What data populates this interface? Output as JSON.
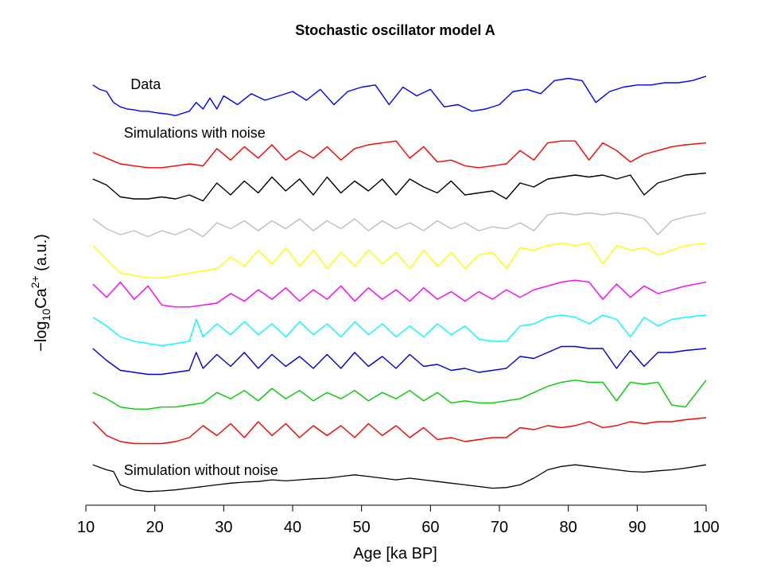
{
  "chart_data": {
    "type": "line",
    "title": "Stochastic oscillator model A",
    "xlabel": "Age [ka BP]",
    "ylabel": {
      "prefix": "−log",
      "sub": "10",
      "base": "Ca",
      "sup": "2+",
      "suffix": " (a.u.)"
    },
    "xlim": [
      10,
      100
    ],
    "xticks": [
      10,
      20,
      30,
      40,
      50,
      60,
      70,
      80,
      90,
      100
    ],
    "y_axis_ticks_shown": false,
    "grid": false,
    "annotations": [
      {
        "text": "Data",
        "x": 16.5,
        "row": 0
      },
      {
        "text": "Simulations with noise",
        "x": 15.5,
        "row": 1
      },
      {
        "text": "Simulation without noise",
        "x": 15.5,
        "row": 11
      }
    ],
    "series": [
      {
        "color": "#0000ff",
        "x": [
          11,
          12,
          13,
          14,
          15,
          16,
          17,
          18,
          19,
          20,
          21,
          22,
          23,
          24,
          25,
          26,
          27,
          28,
          29,
          30,
          32,
          34,
          36,
          38,
          40,
          42,
          44,
          46,
          48,
          50,
          52,
          54,
          56,
          58,
          60,
          62,
          64,
          66,
          68,
          70,
          72,
          74,
          76,
          78,
          80,
          82,
          84,
          86,
          88,
          90,
          92,
          94,
          96,
          98,
          100
        ],
        "y": [
          0.75,
          0.65,
          0.6,
          0.35,
          0.25,
          0.2,
          0.18,
          0.15,
          0.15,
          0.12,
          0.1,
          0.08,
          0.05,
          0.1,
          0.15,
          0.35,
          0.2,
          0.45,
          0.2,
          0.5,
          0.3,
          0.55,
          0.4,
          0.5,
          0.6,
          0.4,
          0.65,
          0.3,
          0.6,
          0.7,
          0.75,
          0.3,
          0.7,
          0.5,
          0.65,
          0.25,
          0.3,
          0.15,
          0.2,
          0.3,
          0.6,
          0.65,
          0.55,
          0.85,
          0.9,
          0.85,
          0.35,
          0.6,
          0.7,
          0.75,
          0.75,
          0.8,
          0.8,
          0.85,
          0.95
        ]
      },
      {
        "color": "#ff0000",
        "x": [
          11,
          13,
          15,
          17,
          19,
          21,
          23,
          25,
          27,
          29,
          31,
          33,
          35,
          37,
          39,
          41,
          43,
          45,
          47,
          49,
          51,
          53,
          55,
          57,
          59,
          61,
          63,
          65,
          67,
          69,
          71,
          73,
          75,
          77,
          79,
          81,
          83,
          85,
          87,
          89,
          91,
          93,
          95,
          97,
          100
        ],
        "y": [
          0.55,
          0.4,
          0.25,
          0.2,
          0.15,
          0.15,
          0.2,
          0.25,
          0.2,
          0.65,
          0.35,
          0.7,
          0.4,
          0.75,
          0.35,
          0.6,
          0.4,
          0.7,
          0.35,
          0.65,
          0.75,
          0.8,
          0.85,
          0.4,
          0.7,
          0.3,
          0.35,
          0.2,
          0.15,
          0.2,
          0.25,
          0.6,
          0.35,
          0.8,
          0.85,
          0.85,
          0.35,
          0.8,
          0.6,
          0.3,
          0.5,
          0.6,
          0.7,
          0.75,
          0.8
        ]
      },
      {
        "color": "#000000",
        "x": [
          11,
          13,
          15,
          17,
          19,
          21,
          23,
          25,
          27,
          29,
          31,
          33,
          35,
          37,
          39,
          41,
          43,
          45,
          47,
          49,
          51,
          53,
          55,
          57,
          59,
          61,
          63,
          65,
          67,
          69,
          71,
          73,
          75,
          77,
          79,
          81,
          83,
          85,
          87,
          89,
          91,
          93,
          95,
          97,
          100
        ],
        "y": [
          0.7,
          0.55,
          0.25,
          0.2,
          0.2,
          0.25,
          0.2,
          0.3,
          0.15,
          0.6,
          0.3,
          0.65,
          0.35,
          0.75,
          0.4,
          0.7,
          0.3,
          0.75,
          0.35,
          0.65,
          0.4,
          0.7,
          0.3,
          0.7,
          0.5,
          0.35,
          0.65,
          0.3,
          0.35,
          0.4,
          0.2,
          0.6,
          0.5,
          0.7,
          0.75,
          0.8,
          0.75,
          0.8,
          0.7,
          0.8,
          0.3,
          0.6,
          0.7,
          0.8,
          0.85
        ]
      },
      {
        "color": "#bebebe",
        "x": [
          11,
          13,
          15,
          17,
          19,
          21,
          23,
          25,
          27,
          29,
          31,
          33,
          35,
          37,
          39,
          41,
          43,
          45,
          47,
          49,
          51,
          53,
          55,
          57,
          59,
          61,
          63,
          65,
          67,
          69,
          71,
          73,
          75,
          77,
          79,
          81,
          83,
          85,
          87,
          89,
          91,
          93,
          95,
          97,
          100
        ],
        "y": [
          0.6,
          0.35,
          0.2,
          0.3,
          0.15,
          0.3,
          0.2,
          0.35,
          0.15,
          0.5,
          0.35,
          0.55,
          0.3,
          0.55,
          0.35,
          0.6,
          0.3,
          0.55,
          0.35,
          0.6,
          0.3,
          0.55,
          0.35,
          0.5,
          0.3,
          0.55,
          0.35,
          0.5,
          0.3,
          0.4,
          0.35,
          0.5,
          0.3,
          0.7,
          0.75,
          0.7,
          0.75,
          0.7,
          0.75,
          0.7,
          0.6,
          0.2,
          0.55,
          0.65,
          0.75
        ]
      },
      {
        "color": "#ffff00",
        "x": [
          11,
          13,
          15,
          17,
          19,
          21,
          23,
          25,
          27,
          29,
          31,
          33,
          35,
          37,
          39,
          41,
          43,
          45,
          47,
          49,
          51,
          53,
          55,
          57,
          59,
          61,
          63,
          65,
          67,
          69,
          71,
          73,
          75,
          77,
          79,
          81,
          83,
          85,
          87,
          89,
          91,
          93,
          95,
          97,
          100
        ],
        "y": [
          0.8,
          0.5,
          0.2,
          0.15,
          0.1,
          0.1,
          0.15,
          0.2,
          0.25,
          0.3,
          0.55,
          0.35,
          0.7,
          0.4,
          0.75,
          0.35,
          0.7,
          0.3,
          0.65,
          0.35,
          0.7,
          0.4,
          0.65,
          0.3,
          0.7,
          0.35,
          0.65,
          0.3,
          0.6,
          0.65,
          0.3,
          0.75,
          0.7,
          0.8,
          0.85,
          0.8,
          0.85,
          0.4,
          0.8,
          0.7,
          0.75,
          0.6,
          0.7,
          0.8,
          0.85
        ]
      },
      {
        "color": "#ff00ff",
        "x": [
          11,
          13,
          15,
          17,
          19,
          21,
          23,
          25,
          27,
          29,
          31,
          33,
          35,
          37,
          39,
          41,
          43,
          45,
          47,
          49,
          51,
          53,
          55,
          57,
          59,
          61,
          63,
          65,
          67,
          69,
          71,
          73,
          75,
          77,
          79,
          81,
          83,
          85,
          87,
          89,
          91,
          93,
          95,
          97,
          100
        ],
        "y": [
          0.75,
          0.4,
          0.8,
          0.35,
          0.7,
          0.2,
          0.15,
          0.15,
          0.2,
          0.25,
          0.5,
          0.3,
          0.6,
          0.35,
          0.65,
          0.3,
          0.6,
          0.35,
          0.7,
          0.3,
          0.65,
          0.35,
          0.6,
          0.3,
          0.65,
          0.35,
          0.55,
          0.3,
          0.55,
          0.35,
          0.6,
          0.4,
          0.6,
          0.7,
          0.8,
          0.85,
          0.8,
          0.35,
          0.75,
          0.4,
          0.7,
          0.5,
          0.6,
          0.7,
          0.8
        ]
      },
      {
        "color": "#00ffff",
        "x": [
          11,
          13,
          15,
          17,
          19,
          21,
          23,
          25,
          26,
          27,
          29,
          31,
          33,
          35,
          37,
          39,
          41,
          43,
          45,
          47,
          49,
          51,
          53,
          55,
          57,
          59,
          61,
          63,
          65,
          67,
          69,
          71,
          73,
          75,
          77,
          79,
          81,
          83,
          85,
          87,
          89,
          91,
          93,
          95,
          97,
          100
        ],
        "y": [
          0.75,
          0.55,
          0.3,
          0.2,
          0.15,
          0.1,
          0.15,
          0.2,
          0.7,
          0.3,
          0.6,
          0.35,
          0.65,
          0.35,
          0.6,
          0.3,
          0.65,
          0.35,
          0.6,
          0.3,
          0.65,
          0.35,
          0.6,
          0.3,
          0.55,
          0.3,
          0.6,
          0.35,
          0.55,
          0.25,
          0.2,
          0.2,
          0.55,
          0.6,
          0.75,
          0.8,
          0.75,
          0.6,
          0.8,
          0.7,
          0.3,
          0.75,
          0.55,
          0.7,
          0.75,
          0.8
        ]
      },
      {
        "color": "#0000dd",
        "x": [
          11,
          13,
          15,
          17,
          19,
          21,
          23,
          25,
          26,
          27,
          29,
          31,
          33,
          35,
          37,
          39,
          41,
          43,
          45,
          47,
          49,
          51,
          53,
          55,
          57,
          59,
          61,
          63,
          65,
          67,
          69,
          71,
          73,
          75,
          77,
          79,
          81,
          83,
          85,
          87,
          89,
          91,
          93,
          95,
          97,
          100
        ],
        "y": [
          0.8,
          0.5,
          0.25,
          0.2,
          0.15,
          0.15,
          0.2,
          0.25,
          0.7,
          0.3,
          0.65,
          0.35,
          0.7,
          0.3,
          0.65,
          0.35,
          0.6,
          0.3,
          0.65,
          0.3,
          0.7,
          0.35,
          0.6,
          0.3,
          0.65,
          0.35,
          0.4,
          0.25,
          0.3,
          0.2,
          0.25,
          0.3,
          0.6,
          0.55,
          0.7,
          0.85,
          0.85,
          0.8,
          0.8,
          0.3,
          0.75,
          0.35,
          0.7,
          0.7,
          0.75,
          0.8
        ]
      },
      {
        "color": "#00cc00",
        "x": [
          11,
          13,
          15,
          17,
          19,
          21,
          23,
          25,
          27,
          29,
          31,
          33,
          35,
          37,
          39,
          41,
          43,
          45,
          47,
          49,
          51,
          53,
          55,
          57,
          59,
          61,
          63,
          65,
          67,
          69,
          71,
          73,
          75,
          77,
          79,
          81,
          83,
          85,
          87,
          89,
          91,
          93,
          95,
          97,
          100
        ],
        "y": [
          0.55,
          0.4,
          0.2,
          0.15,
          0.15,
          0.2,
          0.2,
          0.25,
          0.3,
          0.55,
          0.4,
          0.6,
          0.35,
          0.65,
          0.4,
          0.6,
          0.35,
          0.55,
          0.4,
          0.6,
          0.35,
          0.55,
          0.4,
          0.6,
          0.35,
          0.55,
          0.3,
          0.35,
          0.3,
          0.3,
          0.35,
          0.4,
          0.55,
          0.7,
          0.8,
          0.85,
          0.8,
          0.8,
          0.35,
          0.8,
          0.75,
          0.8,
          0.25,
          0.2,
          0.85
        ]
      },
      {
        "color": "#ff0000",
        "x": [
          11,
          13,
          15,
          17,
          19,
          21,
          23,
          25,
          27,
          29,
          31,
          33,
          35,
          37,
          39,
          41,
          43,
          45,
          47,
          49,
          51,
          53,
          55,
          57,
          59,
          61,
          63,
          65,
          67,
          69,
          71,
          73,
          75,
          77,
          79,
          81,
          83,
          85,
          87,
          89,
          91,
          93,
          95,
          97,
          100
        ],
        "y": [
          0.7,
          0.35,
          0.2,
          0.15,
          0.15,
          0.15,
          0.2,
          0.3,
          0.6,
          0.35,
          0.65,
          0.3,
          0.7,
          0.35,
          0.65,
          0.3,
          0.6,
          0.35,
          0.6,
          0.3,
          0.65,
          0.35,
          0.6,
          0.3,
          0.55,
          0.25,
          0.3,
          0.2,
          0.25,
          0.3,
          0.3,
          0.55,
          0.5,
          0.6,
          0.55,
          0.6,
          0.7,
          0.55,
          0.6,
          0.7,
          0.65,
          0.7,
          0.7,
          0.75,
          0.8
        ]
      },
      {
        "color": "#000000",
        "x": [
          11,
          13,
          14,
          15,
          17,
          19,
          21,
          23,
          25,
          27,
          29,
          31,
          33,
          35,
          37,
          39,
          41,
          43,
          45,
          47,
          49,
          51,
          53,
          55,
          57,
          59,
          61,
          63,
          65,
          67,
          69,
          71,
          73,
          75,
          77,
          79,
          81,
          83,
          85,
          87,
          89,
          91,
          93,
          95,
          97,
          100
        ],
        "y": [
          0.9,
          0.75,
          0.7,
          0.3,
          0.15,
          0.1,
          0.12,
          0.15,
          0.2,
          0.25,
          0.3,
          0.35,
          0.38,
          0.4,
          0.45,
          0.42,
          0.45,
          0.48,
          0.5,
          0.55,
          0.6,
          0.55,
          0.5,
          0.45,
          0.5,
          0.45,
          0.4,
          0.35,
          0.3,
          0.25,
          0.2,
          0.22,
          0.3,
          0.5,
          0.75,
          0.85,
          0.9,
          0.85,
          0.8,
          0.75,
          0.7,
          0.68,
          0.72,
          0.75,
          0.8,
          0.9
        ]
      }
    ]
  }
}
